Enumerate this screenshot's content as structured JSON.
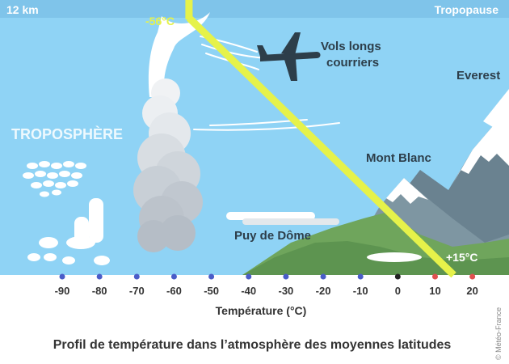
{
  "header": {
    "altitude": "12 km",
    "tropopause": "Tropopause"
  },
  "labels": {
    "top_temp": "-56°C",
    "bottom_temp": "+15°C",
    "flights_line1": "Vols longs",
    "flights_line2": "courriers",
    "troposphere": "TROPOSPHÈRE",
    "everest": "Everest",
    "mont_blanc": "Mont Blanc",
    "puy_de_dome": "Puy de  Dôme"
  },
  "axis": {
    "title": "Température (°C)",
    "ticks": [
      {
        "label": "-90",
        "value": -90
      },
      {
        "label": "-80",
        "value": -80
      },
      {
        "label": "-70",
        "value": -70
      },
      {
        "label": "-60",
        "value": -60
      },
      {
        "label": "-50",
        "value": -50
      },
      {
        "label": "-40",
        "value": -40
      },
      {
        "label": "-30",
        "value": -30
      },
      {
        "label": "-20",
        "value": -20
      },
      {
        "label": "-10",
        "value": -10
      },
      {
        "label": "0",
        "value": 0
      },
      {
        "label": "10",
        "value": 10
      },
      {
        "label": "20",
        "value": 20
      }
    ],
    "range": [
      -90,
      20
    ]
  },
  "profile": {
    "top_value": -56,
    "bottom_value": 15
  },
  "caption": "Profil de température dans l’atmosphère des moyennes latitudes",
  "credit": "© Météo-France",
  "colors": {
    "sky": "#8fd3f5",
    "tropopause_band": "#7fc4ea",
    "profile_line": "#e6f24a",
    "dot_cold": "#4a5cc8",
    "dot_zero": "#222222",
    "dot_warm": "#e05050",
    "mountain_green": "#6fa55c",
    "mountain_gray": "#6a8290",
    "snow": "#ffffff",
    "text_dark": "#2d3e4a",
    "text_white": "#ffffff"
  }
}
